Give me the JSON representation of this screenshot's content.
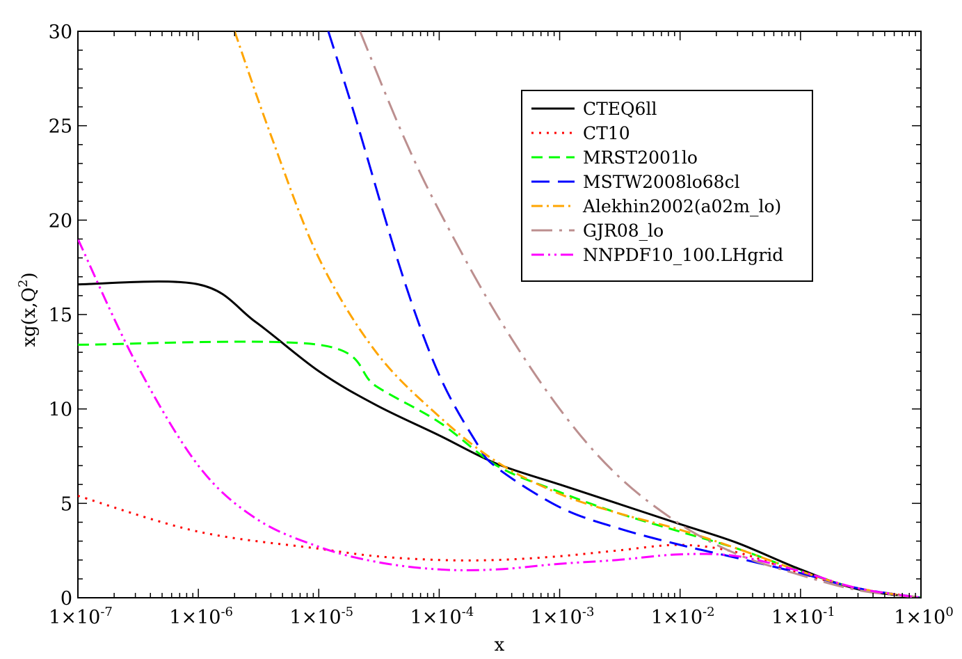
{
  "chart_data": {
    "type": "line",
    "xlabel": "x",
    "ylabel_parts": {
      "base": "xg(x,Q",
      "sup": "2",
      "close": ")"
    },
    "x_scale": "log",
    "xlim": [
      1e-07,
      1
    ],
    "ylim": [
      0,
      30
    ],
    "grid": false,
    "legend_position": "top-right",
    "y_ticks": [
      "0",
      "5",
      "10",
      "15",
      "20",
      "25",
      "30"
    ],
    "x_tick_labels": [
      {
        "base": "1×10",
        "exp": "-7"
      },
      {
        "base": "1×10",
        "exp": "-6"
      },
      {
        "base": "1×10",
        "exp": "-5"
      },
      {
        "base": "1×10",
        "exp": "-4"
      },
      {
        "base": "1×10",
        "exp": "-3"
      },
      {
        "base": "1×10",
        "exp": "-2"
      },
      {
        "base": "1×10",
        "exp": "-1"
      },
      {
        "base": "1×10",
        "exp": "0"
      }
    ],
    "series": [
      {
        "name": "CTEQ6ll",
        "color": "#000000",
        "dash": "solid",
        "points": [
          [
            1e-07,
            16.6
          ],
          [
            1e-06,
            16.6
          ],
          [
            3e-06,
            14.6
          ],
          [
            1e-05,
            12.0
          ],
          [
            3e-05,
            10.2
          ],
          [
            0.0001,
            8.6
          ],
          [
            0.0003,
            7.1
          ],
          [
            0.001,
            6.0
          ],
          [
            0.003,
            5.0
          ],
          [
            0.01,
            3.9
          ],
          [
            0.03,
            2.9
          ],
          [
            0.1,
            1.5
          ],
          [
            0.3,
            0.45
          ],
          [
            1,
            0
          ]
        ]
      },
      {
        "name": "CT10",
        "color": "#ff0000",
        "dash": "dotted",
        "points": [
          [
            1e-07,
            5.4
          ],
          [
            1e-06,
            3.5
          ],
          [
            1e-05,
            2.6
          ],
          [
            3e-05,
            2.2
          ],
          [
            0.0001,
            2.0
          ],
          [
            0.0003,
            2.0
          ],
          [
            0.001,
            2.2
          ],
          [
            0.003,
            2.5
          ],
          [
            0.01,
            2.8
          ],
          [
            0.03,
            2.4
          ],
          [
            0.1,
            1.3
          ],
          [
            0.3,
            0.5
          ],
          [
            1,
            0
          ]
        ]
      },
      {
        "name": "MRST2001lo",
        "color": "#00ff00",
        "dash": "dashed",
        "points": [
          [
            1e-07,
            13.4
          ],
          [
            1e-05,
            13.4
          ],
          [
            3e-05,
            11.2
          ],
          [
            0.0001,
            9.3
          ],
          [
            0.0003,
            7.0
          ],
          [
            0.001,
            5.6
          ],
          [
            0.003,
            4.5
          ],
          [
            0.01,
            3.5
          ],
          [
            0.03,
            2.6
          ],
          [
            0.1,
            1.4
          ],
          [
            0.3,
            0.5
          ],
          [
            1,
            0
          ]
        ]
      },
      {
        "name": "MSTW2008lo68cl",
        "color": "#0000ff",
        "dash": "longdash",
        "points": [
          [
            1.2e-05,
            30
          ],
          [
            2e-05,
            25.5
          ],
          [
            5e-05,
            17.0
          ],
          [
            0.0001,
            11.8
          ],
          [
            0.0002,
            8.3
          ],
          [
            0.0003,
            6.9
          ],
          [
            0.001,
            4.8
          ],
          [
            0.003,
            3.7
          ],
          [
            0.01,
            2.8
          ],
          [
            0.03,
            2.1
          ],
          [
            0.1,
            1.3
          ],
          [
            0.3,
            0.5
          ],
          [
            1,
            0
          ]
        ]
      },
      {
        "name": "Alekhin2002(a02m_lo)",
        "color": "#ffa500",
        "dash": "dashdot",
        "points": [
          [
            2e-06,
            30
          ],
          [
            4e-06,
            24.5
          ],
          [
            1e-05,
            18.0
          ],
          [
            3e-05,
            13.0
          ],
          [
            0.0001,
            9.6
          ],
          [
            0.0003,
            7.2
          ],
          [
            0.001,
            5.5
          ],
          [
            0.003,
            4.5
          ],
          [
            0.01,
            3.6
          ],
          [
            0.03,
            2.6
          ],
          [
            0.1,
            1.4
          ],
          [
            0.3,
            0.5
          ],
          [
            1,
            0
          ]
        ]
      },
      {
        "name": "GJR08_lo",
        "color": "#bc8f8f",
        "dash": "longdashdot",
        "points": [
          [
            2.2e-05,
            30
          ],
          [
            5e-05,
            24.5
          ],
          [
            0.0001,
            20.5
          ],
          [
            0.0003,
            15.0
          ],
          [
            0.001,
            10.0
          ],
          [
            0.003,
            6.5
          ],
          [
            0.01,
            3.9
          ],
          [
            0.03,
            2.3
          ],
          [
            0.1,
            1.2
          ],
          [
            0.3,
            0.4
          ],
          [
            1,
            0
          ]
        ]
      },
      {
        "name": "NNPDF10_100.LHgrid",
        "color": "#ff00ff",
        "dash": "dashdotdot",
        "points": [
          [
            1e-07,
            19.0
          ],
          [
            3e-07,
            12.5
          ],
          [
            1e-06,
            7.0
          ],
          [
            3e-06,
            4.2
          ],
          [
            1e-05,
            2.7
          ],
          [
            3e-05,
            1.9
          ],
          [
            0.0001,
            1.5
          ],
          [
            0.0003,
            1.5
          ],
          [
            0.001,
            1.8
          ],
          [
            0.003,
            2.0
          ],
          [
            0.01,
            2.3
          ],
          [
            0.03,
            2.2
          ],
          [
            0.1,
            1.4
          ],
          [
            0.3,
            0.5
          ],
          [
            1,
            0
          ]
        ]
      }
    ]
  }
}
